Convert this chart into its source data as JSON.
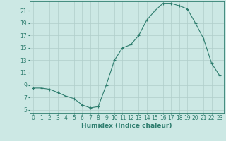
{
  "x": [
    0,
    1,
    2,
    3,
    4,
    5,
    6,
    7,
    8,
    9,
    10,
    11,
    12,
    13,
    14,
    15,
    16,
    17,
    18,
    19,
    20,
    21,
    22,
    23
  ],
  "y": [
    8.5,
    8.5,
    8.3,
    7.8,
    7.2,
    6.8,
    5.8,
    5.3,
    5.5,
    9.0,
    13.0,
    15.0,
    15.5,
    17.0,
    19.5,
    21.0,
    22.2,
    22.2,
    21.8,
    21.3,
    19.0,
    16.5,
    12.5,
    10.5
  ],
  "line_color": "#2e7d6e",
  "marker": "+",
  "marker_size": 3,
  "bg_color": "#cce8e4",
  "grid_color": "#b0ceca",
  "xlim": [
    -0.5,
    23.5
  ],
  "ylim": [
    4.5,
    22.5
  ],
  "yticks": [
    5,
    7,
    9,
    11,
    13,
    15,
    17,
    19,
    21
  ],
  "xticks": [
    0,
    1,
    2,
    3,
    4,
    5,
    6,
    7,
    8,
    9,
    10,
    11,
    12,
    13,
    14,
    15,
    16,
    17,
    18,
    19,
    20,
    21,
    22,
    23
  ],
  "xlabel": "Humidex (Indice chaleur)",
  "xlabel_fontsize": 6.5,
  "tick_fontsize": 5.5,
  "tick_color": "#2e7d6e",
  "spine_color": "#2e7d6e",
  "linewidth": 0.8,
  "markeredgewidth": 0.8
}
